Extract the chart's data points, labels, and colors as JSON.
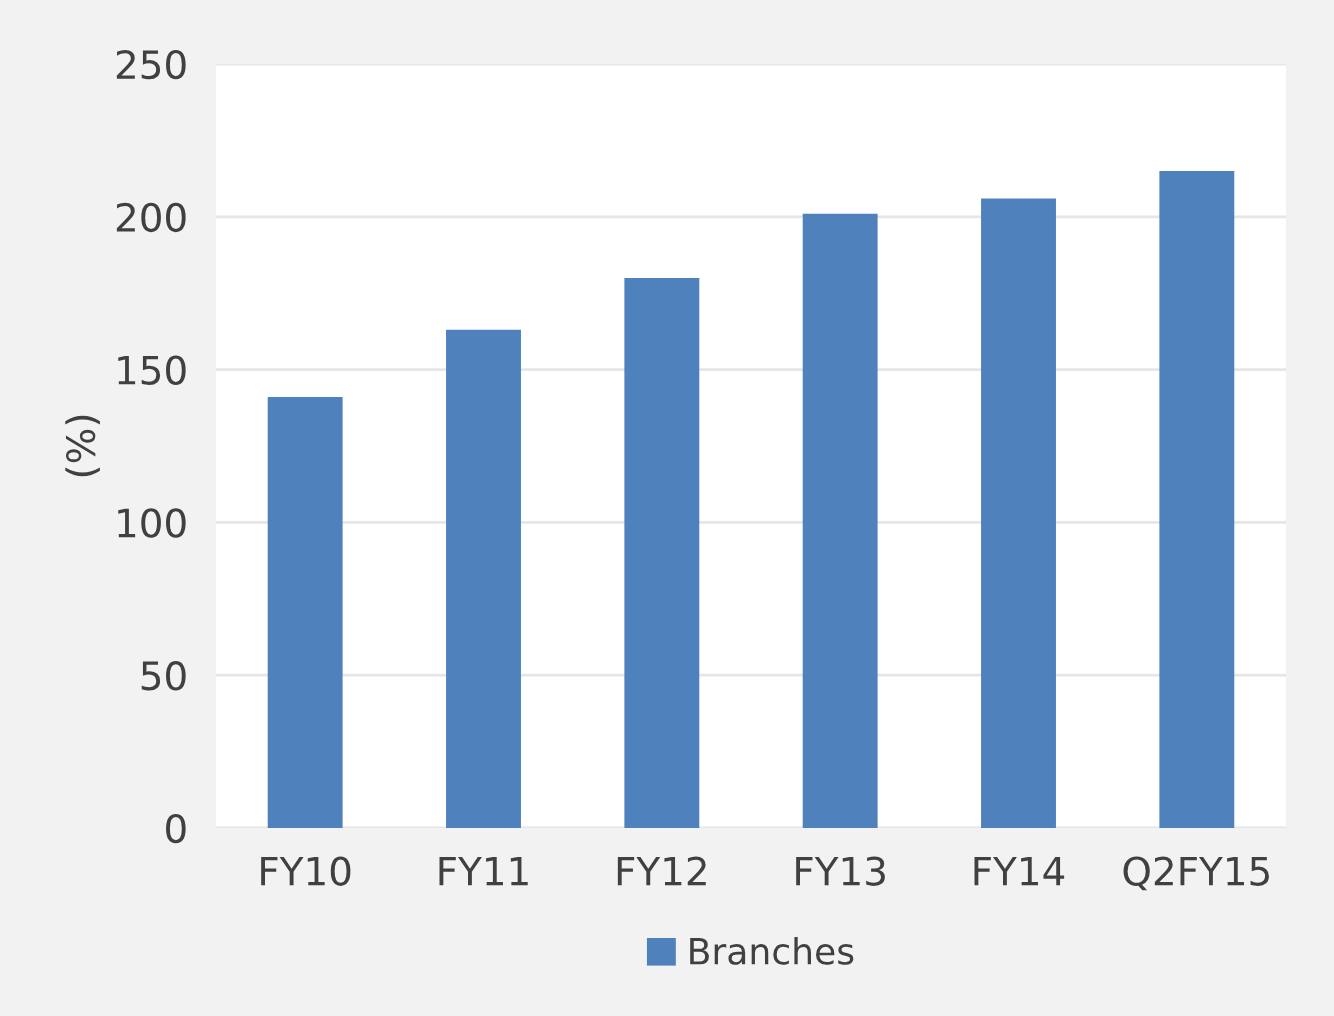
{
  "chart_data": {
    "type": "bar",
    "ylabel": "(%)",
    "categories": [
      "FY10",
      "FY11",
      "FY12",
      "FY13",
      "FY14",
      "Q2FY15"
    ],
    "series": [
      {
        "name": "Branches",
        "color": "#4f81bd",
        "values": [
          141,
          163,
          180,
          201,
          206,
          215
        ]
      }
    ],
    "ylim": [
      0,
      250
    ],
    "yticks": [
      0,
      50,
      100,
      150,
      200,
      250
    ],
    "grid": "y",
    "legend": "bottom"
  }
}
